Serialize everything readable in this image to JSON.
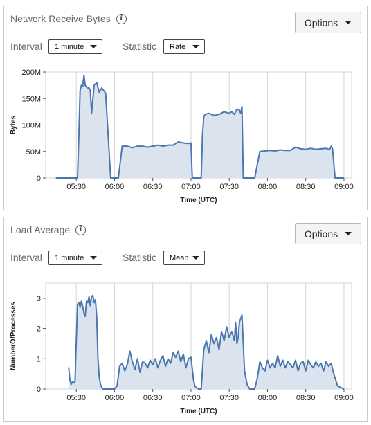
{
  "panels": [
    {
      "title": "Network Receive Bytes",
      "options_label": "Options",
      "interval_label": "Interval",
      "interval_value": "1 minute",
      "statistic_label": "Statistic",
      "statistic_value": "Rate",
      "chart_data": {
        "type": "area",
        "xlabel": "Time (UTC)",
        "ylabel": "Bytes",
        "x_ticks": [
          "05:30",
          "06:00",
          "06:30",
          "07:00",
          "07:30",
          "08:00",
          "08:30",
          "09:00"
        ],
        "y_ticks": [
          "0",
          "50M",
          "100M",
          "150M",
          "200M"
        ],
        "xlim": [
          "05:06",
          "09:06"
        ],
        "ylim": [
          0,
          200
        ],
        "series": [
          {
            "x": [
              "05:14",
              "05:18",
              "05:19",
              "05:20",
              "05:21",
              "05:22",
              "05:24",
              "05:26",
              "05:28",
              "05:29",
              "05:30",
              "05:31",
              "05:32",
              "05:33",
              "05:34",
              "05:35",
              "05:36",
              "05:37",
              "05:38",
              "05:39",
              "05:40",
              "05:41",
              "05:42",
              "05:44",
              "05:46",
              "05:48",
              "05:50",
              "05:53",
              "05:57",
              "06:00",
              "06:02",
              "06:03",
              "06:06",
              "06:10",
              "06:14",
              "06:18",
              "06:22",
              "06:26",
              "06:30",
              "06:34",
              "06:38",
              "06:42",
              "06:46",
              "06:50",
              "06:54",
              "06:57",
              "07:00",
              "07:01",
              "07:03",
              "07:06",
              "07:07",
              "07:08",
              "07:09",
              "07:10",
              "07:11",
              "07:14",
              "07:18",
              "07:22",
              "07:26",
              "07:30",
              "07:32",
              "07:34",
              "07:36",
              "07:38",
              "07:39",
              "07:40",
              "07:41",
              "07:42",
              "07:44",
              "07:46",
              "07:48",
              "07:50",
              "07:54",
              "07:58",
              "08:02",
              "08:06",
              "08:10",
              "08:14",
              "08:18",
              "08:22",
              "08:26",
              "08:30",
              "08:34",
              "08:38",
              "08:42",
              "08:46",
              "08:48",
              "08:49",
              "08:50",
              "08:51",
              "08:53",
              "08:56",
              "09:00"
            ],
            "y": [
              0,
              0,
              0,
              0,
              0,
              0,
              0,
              0,
              0,
              0,
              0,
              0,
              80,
              165,
              175,
              173,
              194,
              175,
              172,
              170,
              170,
              165,
              122,
              175,
              180,
              162,
              170,
              160,
              0,
              0,
              0,
              0,
              60,
              60,
              57,
              60,
              60,
              58,
              60,
              62,
              60,
              62,
              62,
              68,
              66,
              65,
              66,
              0,
              0,
              0,
              0,
              0,
              80,
              115,
              120,
              122,
              118,
              120,
              125,
              122,
              125,
              120,
              130,
              128,
              122,
              135,
              0,
              0,
              0,
              0,
              0,
              0,
              50,
              51,
              52,
              51,
              53,
              52,
              52,
              58,
              55,
              54,
              56,
              54,
              55,
              56,
              54,
              55,
              60,
              55,
              0,
              0,
              0
            ]
          }
        ]
      }
    },
    {
      "title": "Load Average",
      "options_label": "Options",
      "interval_label": "Interval",
      "interval_value": "1 minute",
      "statistic_label": "Statistic",
      "statistic_value": "Mean",
      "chart_data": {
        "type": "area",
        "xlabel": "Time (UTC)",
        "ylabel": "NumberOfProcesses",
        "x_ticks": [
          "05:30",
          "06:00",
          "06:30",
          "07:00",
          "07:30",
          "08:00",
          "08:30",
          "09:00"
        ],
        "y_ticks": [
          "0",
          "1",
          "2",
          "3"
        ],
        "xlim": [
          "05:06",
          "09:06"
        ],
        "ylim": [
          0,
          3.5
        ],
        "series": [
          {
            "x": [
              "05:24",
              "05:25",
              "05:26",
              "05:27",
              "05:28",
              "05:29",
              "05:30",
              "05:31",
              "05:32",
              "05:33",
              "05:34",
              "05:35",
              "05:36",
              "05:37",
              "05:38",
              "05:39",
              "05:40",
              "05:41",
              "05:42",
              "05:43",
              "05:44",
              "05:45",
              "05:46",
              "05:47",
              "05:48",
              "05:49",
              "05:50",
              "05:51",
              "05:52",
              "05:53",
              "05:54",
              "05:55",
              "05:56",
              "06:00",
              "06:02",
              "06:04",
              "06:06",
              "06:08",
              "06:10",
              "06:12",
              "06:14",
              "06:16",
              "06:18",
              "06:20",
              "06:22",
              "06:24",
              "06:26",
              "06:28",
              "06:30",
              "06:32",
              "06:34",
              "06:36",
              "06:38",
              "06:40",
              "06:42",
              "06:44",
              "06:46",
              "06:48",
              "06:50",
              "06:52",
              "06:54",
              "06:56",
              "06:58",
              "07:00",
              "07:02",
              "07:03",
              "07:04",
              "07:06",
              "07:08",
              "07:10",
              "07:12",
              "07:14",
              "07:16",
              "07:18",
              "07:20",
              "07:22",
              "07:24",
              "07:26",
              "07:28",
              "07:30",
              "07:32",
              "07:34",
              "07:35",
              "07:36",
              "07:37",
              "07:38",
              "07:40",
              "07:42",
              "07:44",
              "07:46",
              "07:48",
              "07:50",
              "07:52",
              "07:54",
              "07:56",
              "07:58",
              "08:00",
              "08:02",
              "08:04",
              "08:06",
              "08:08",
              "08:10",
              "08:12",
              "08:14",
              "08:16",
              "08:18",
              "08:20",
              "08:22",
              "08:24",
              "08:26",
              "08:28",
              "08:30",
              "08:32",
              "08:34",
              "08:36",
              "08:38",
              "08:40",
              "08:42",
              "08:44",
              "08:46",
              "08:48",
              "08:50",
              "08:52",
              "08:55",
              "09:00"
            ],
            "y": [
              0.72,
              0.3,
              0.15,
              0.25,
              0.2,
              0.25,
              1.6,
              2.8,
              2.85,
              2.7,
              2.9,
              2.75,
              2.5,
              2.4,
              2.9,
              2.85,
              3.05,
              2.75,
              3.05,
              3.1,
              2.85,
              2.95,
              2.4,
              1.0,
              0.4,
              0.15,
              0.05,
              0.0,
              0.0,
              0.0,
              0.0,
              0.0,
              0.0,
              0.0,
              0.1,
              0.75,
              0.85,
              0.6,
              0.8,
              1.25,
              0.9,
              0.65,
              1.0,
              0.55,
              0.9,
              0.85,
              0.7,
              0.95,
              0.8,
              1.0,
              0.7,
              0.95,
              1.1,
              0.75,
              1.0,
              0.85,
              1.2,
              1.05,
              1.25,
              0.9,
              1.15,
              0.7,
              1.0,
              1.05,
              0.3,
              0.1,
              0.05,
              0.0,
              0.0,
              1.3,
              1.6,
              1.2,
              1.8,
              1.5,
              1.7,
              1.3,
              1.9,
              1.6,
              2.05,
              1.7,
              1.9,
              1.6,
              2.2,
              1.5,
              1.7,
              2.2,
              2.45,
              0.6,
              0.15,
              0.0,
              0.0,
              0.0,
              0.35,
              0.9,
              0.7,
              0.6,
              0.95,
              0.7,
              0.85,
              0.7,
              1.1,
              0.75,
              0.95,
              0.7,
              0.9,
              0.8,
              0.7,
              0.95,
              0.6,
              0.85,
              0.9,
              0.6,
              0.95,
              0.8,
              0.7,
              0.9,
              0.75,
              0.85,
              0.6,
              0.9,
              0.75,
              0.85,
              0.5,
              0.1,
              0.0
            ]
          }
        ]
      }
    }
  ],
  "colors": {
    "line": "#4a77ad",
    "fill": "#dbe3ee",
    "grid": "#d6d6d6"
  }
}
